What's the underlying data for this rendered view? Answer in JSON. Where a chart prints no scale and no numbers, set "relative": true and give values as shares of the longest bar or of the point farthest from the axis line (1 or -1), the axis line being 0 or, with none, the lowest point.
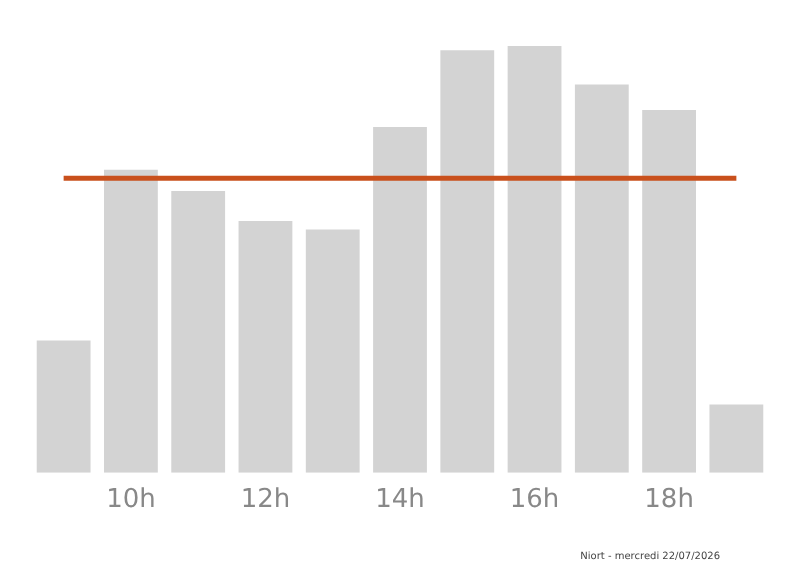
{
  "chart_data": {
    "type": "bar",
    "relative": true,
    "categories": [
      null,
      "10h",
      null,
      "12h",
      null,
      "14h",
      null,
      "16h",
      null,
      "18h",
      null
    ],
    "values": [
      0.31,
      0.71,
      0.66,
      0.59,
      0.57,
      0.81,
      0.99,
      1,
      0.91,
      0.85,
      0.16
    ],
    "color": "#d3d3d3",
    "ref_lines": [
      {
        "axis": "y",
        "value": 0.69,
        "color": "#c9501c"
      }
    ],
    "annotations": [
      "Niort - mercredi 22/07/2026"
    ],
    "grid": false,
    "legend": false
  }
}
